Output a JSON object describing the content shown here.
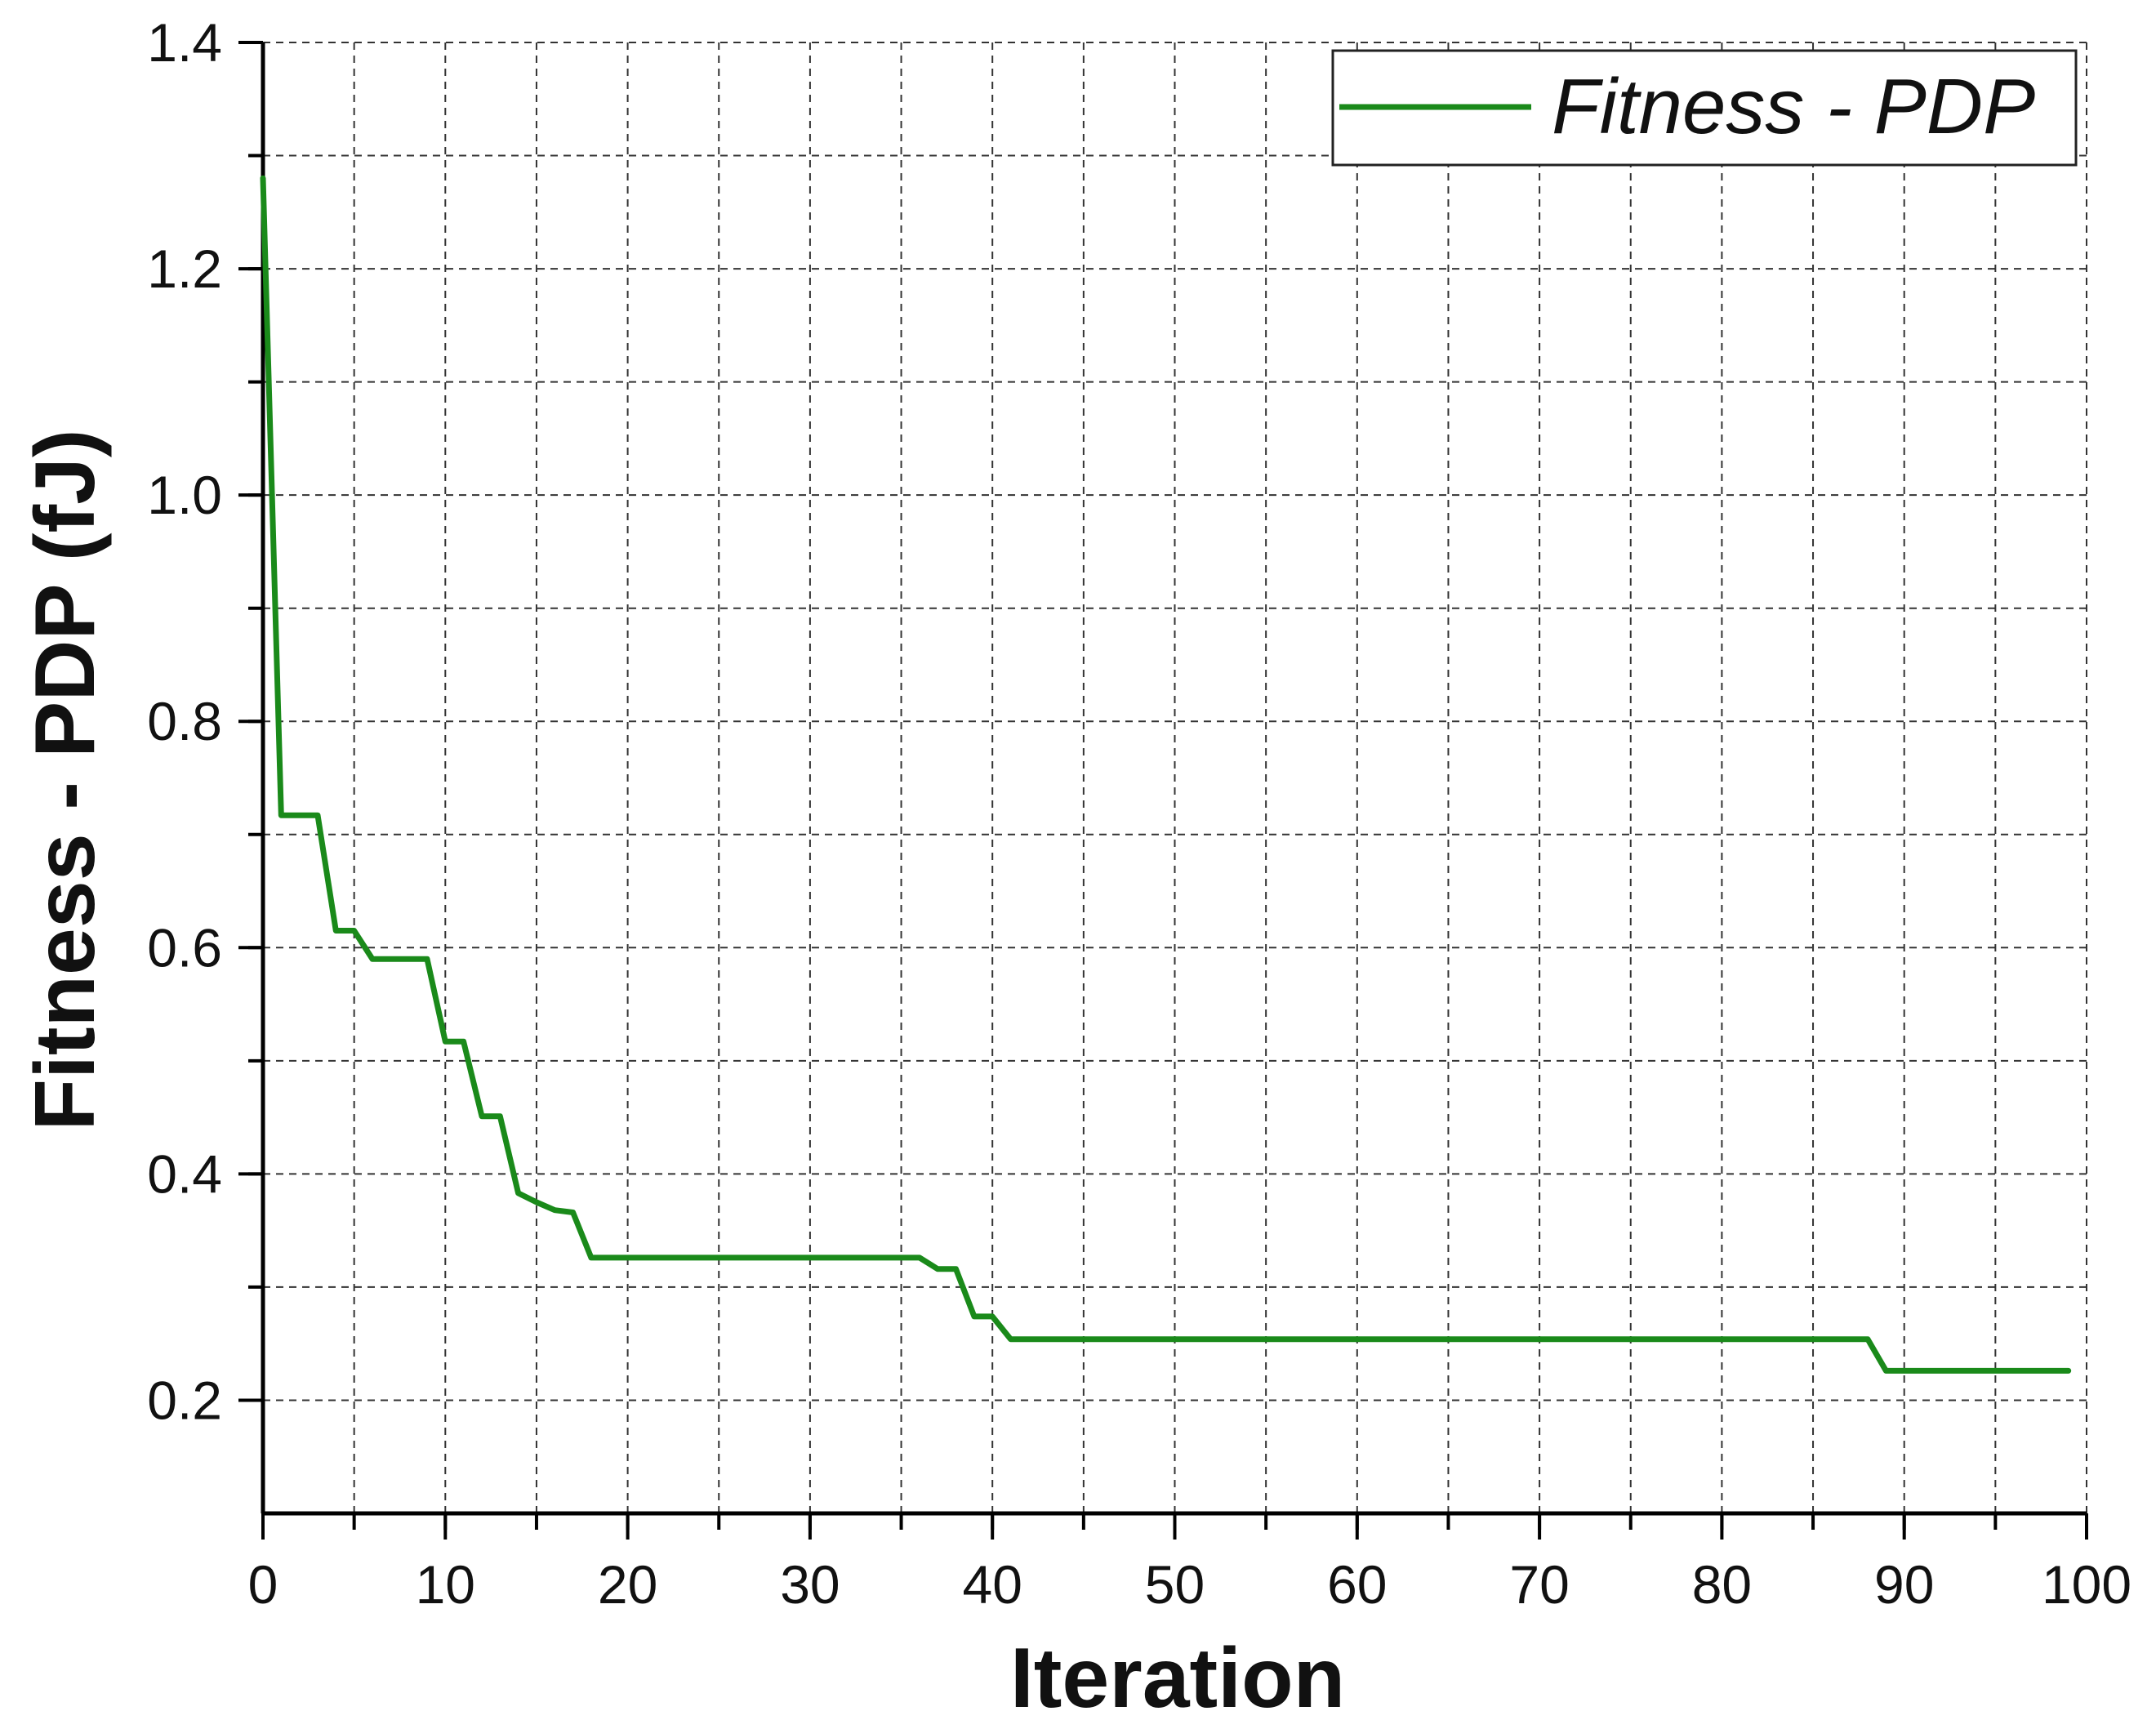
{
  "chart_data": {
    "type": "line",
    "title": "",
    "xlabel": "Iteration",
    "ylabel": "Fitness - PDP (fJ)",
    "xlim": [
      0,
      100
    ],
    "ylim": [
      0.1,
      1.4
    ],
    "x_major_ticks": [
      0,
      10,
      20,
      30,
      40,
      50,
      60,
      70,
      80,
      90,
      100
    ],
    "x_tick_labels": [
      "0",
      "10",
      "20",
      "30",
      "40",
      "50",
      "60",
      "70",
      "80",
      "90",
      "100"
    ],
    "y_major_ticks": [
      0.2,
      0.4,
      0.6,
      0.8,
      1.0,
      1.2,
      1.4
    ],
    "y_tick_labels": [
      "0.2",
      "0.4",
      "0.6",
      "0.8",
      "1.0",
      "1.2",
      "1.4"
    ],
    "grid": true,
    "grid_style": "dashed",
    "legend_position": "top-right",
    "series": [
      {
        "name": "Fitness - PDP",
        "color": "#1a8a1a",
        "x": [
          0,
          1,
          2,
          3,
          4,
          5,
          6,
          7,
          8,
          9,
          10,
          11,
          12,
          13,
          14,
          15,
          16,
          17,
          18,
          19,
          20,
          21,
          22,
          23,
          24,
          25,
          26,
          27,
          28,
          29,
          30,
          31,
          32,
          33,
          34,
          35,
          36,
          37,
          38,
          39,
          40,
          41,
          42,
          43,
          44,
          45,
          46,
          47,
          48,
          49,
          50,
          51,
          52,
          53,
          54,
          55,
          56,
          57,
          58,
          59,
          60,
          61,
          62,
          63,
          64,
          65,
          66,
          67,
          68,
          69,
          70,
          71,
          72,
          73,
          74,
          75,
          76,
          77,
          78,
          79,
          80,
          81,
          82,
          83,
          84,
          85,
          86,
          87,
          88,
          89,
          90,
          91,
          92,
          93,
          94,
          95,
          96,
          97,
          98,
          99
        ],
        "y": [
          1.28,
          0.717,
          0.717,
          0.717,
          0.615,
          0.615,
          0.59,
          0.59,
          0.59,
          0.59,
          0.517,
          0.517,
          0.451,
          0.451,
          0.383,
          0.375,
          0.368,
          0.366,
          0.326,
          0.326,
          0.326,
          0.326,
          0.326,
          0.326,
          0.326,
          0.326,
          0.326,
          0.326,
          0.326,
          0.326,
          0.326,
          0.326,
          0.326,
          0.326,
          0.326,
          0.326,
          0.326,
          0.316,
          0.316,
          0.274,
          0.274,
          0.254,
          0.254,
          0.254,
          0.254,
          0.254,
          0.254,
          0.254,
          0.254,
          0.254,
          0.254,
          0.254,
          0.254,
          0.254,
          0.254,
          0.254,
          0.254,
          0.254,
          0.254,
          0.254,
          0.254,
          0.254,
          0.254,
          0.254,
          0.254,
          0.254,
          0.254,
          0.254,
          0.254,
          0.254,
          0.254,
          0.254,
          0.254,
          0.254,
          0.254,
          0.254,
          0.254,
          0.254,
          0.254,
          0.254,
          0.254,
          0.254,
          0.254,
          0.254,
          0.254,
          0.254,
          0.254,
          0.254,
          0.254,
          0.226,
          0.226,
          0.226,
          0.226,
          0.226,
          0.226,
          0.226,
          0.226,
          0.226,
          0.226,
          0.226
        ]
      }
    ]
  }
}
